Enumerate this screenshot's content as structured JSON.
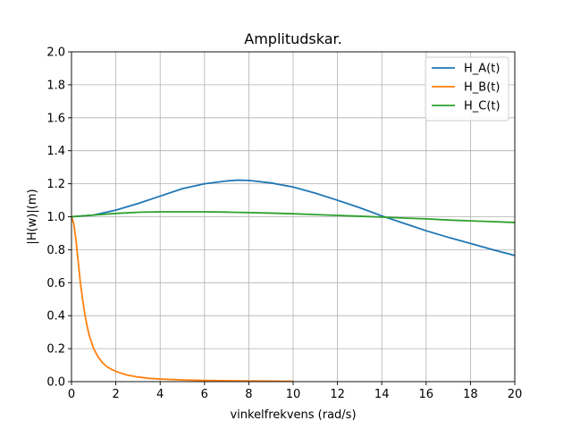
{
  "chart_data": {
    "type": "line",
    "title": "Amplitudskar.",
    "xlabel": "vinkelfrekvens (rad/s)",
    "ylabel": "|H(w)|(m)",
    "xlim": [
      0,
      20
    ],
    "ylim": [
      0,
      2
    ],
    "xticks": [
      "0",
      "2",
      "4",
      "6",
      "8",
      "10",
      "12",
      "14",
      "16",
      "18",
      "20"
    ],
    "yticks": [
      "0.0",
      "0.2",
      "0.4",
      "0.6",
      "0.8",
      "1.0",
      "1.2",
      "1.4",
      "1.6",
      "1.8",
      "2.0"
    ],
    "grid": true,
    "legend_position": "top-right",
    "series": [
      {
        "name": "H_A(t)",
        "color": "#1f77b4",
        "x": [
          0,
          1,
          2,
          3,
          4,
          5,
          6,
          7,
          7.5,
          8,
          9,
          10,
          11,
          12,
          13,
          14,
          15,
          16,
          17,
          18,
          19,
          20
        ],
        "y": [
          1.0,
          1.01,
          1.04,
          1.08,
          1.125,
          1.17,
          1.2,
          1.217,
          1.222,
          1.22,
          1.205,
          1.18,
          1.143,
          1.1,
          1.055,
          1.005,
          0.96,
          0.915,
          0.875,
          0.838,
          0.8,
          0.765
        ]
      },
      {
        "name": "H_B(t)",
        "color": "#ff7f0e",
        "x": [
          0,
          0.1,
          0.2,
          0.3,
          0.4,
          0.5,
          0.6,
          0.7,
          0.8,
          0.9,
          1.0,
          1.2,
          1.4,
          1.6,
          1.8,
          2.0,
          2.5,
          3,
          3.5,
          4,
          5,
          6,
          7,
          8,
          9,
          10
        ],
        "y": [
          1.0,
          0.96,
          0.86,
          0.73,
          0.6,
          0.5,
          0.41,
          0.34,
          0.28,
          0.24,
          0.2,
          0.15,
          0.115,
          0.09,
          0.075,
          0.062,
          0.04,
          0.028,
          0.02,
          0.016,
          0.01,
          0.007,
          0.005,
          0.004,
          0.003,
          0.002
        ]
      },
      {
        "name": "H_C(t)",
        "color": "#2ca02c",
        "x": [
          0,
          1,
          2,
          3,
          4,
          5,
          6,
          7,
          8,
          9,
          10,
          11,
          12,
          13,
          14,
          15,
          16,
          17,
          18,
          19,
          20
        ],
        "y": [
          1.0,
          1.01,
          1.02,
          1.027,
          1.03,
          1.03,
          1.03,
          1.028,
          1.025,
          1.022,
          1.018,
          1.013,
          1.008,
          1.003,
          0.998,
          0.992,
          0.987,
          0.98,
          0.975,
          0.97,
          0.965
        ]
      }
    ]
  }
}
